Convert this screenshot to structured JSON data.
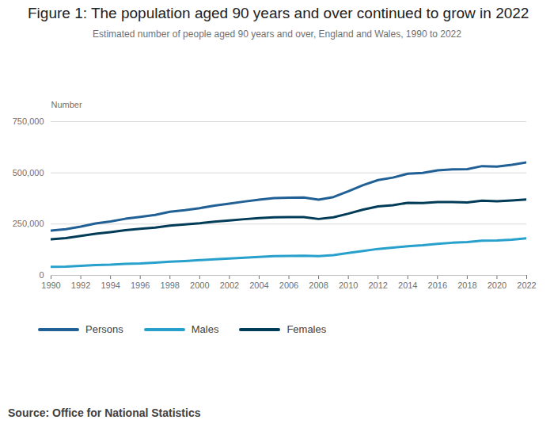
{
  "chart_data": {
    "type": "line",
    "title": "Figure 1: The population aged 90 years and over continued to grow in 2022",
    "subtitle": "Estimated number of people aged 90 years and over, England and Wales, 1990 to 2022",
    "y_label": "Number",
    "source": "Source: Office for National Statistics",
    "x": [
      1990,
      1991,
      1992,
      1993,
      1994,
      1995,
      1996,
      1997,
      1998,
      1999,
      2000,
      2001,
      2002,
      2003,
      2004,
      2005,
      2006,
      2007,
      2008,
      2009,
      2010,
      2011,
      2012,
      2013,
      2014,
      2015,
      2016,
      2017,
      2018,
      2019,
      2020,
      2021,
      2022
    ],
    "series": [
      {
        "name": "Persons",
        "color": "#206095",
        "values": [
          218000,
          225000,
          238000,
          253000,
          263000,
          276000,
          285000,
          295000,
          310000,
          318000,
          328000,
          340000,
          350000,
          360000,
          369000,
          377000,
          379000,
          380000,
          369000,
          382000,
          410000,
          440000,
          465000,
          477000,
          496000,
          500000,
          512000,
          517000,
          518000,
          533000,
          531000,
          539000,
          551000
        ]
      },
      {
        "name": "Males",
        "color": "#27a0cc",
        "values": [
          42000,
          43000,
          46000,
          50000,
          52000,
          56000,
          58000,
          62000,
          67000,
          70000,
          74000,
          78000,
          82000,
          86000,
          90000,
          94000,
          95000,
          96000,
          94000,
          99000,
          109000,
          119000,
          129000,
          135000,
          142000,
          147000,
          154000,
          159000,
          162000,
          169000,
          170000,
          174000,
          181000
        ]
      },
      {
        "name": "Females",
        "color": "#003c57",
        "values": [
          176000,
          182000,
          192000,
          203000,
          211000,
          220000,
          227000,
          233000,
          243000,
          248000,
          254000,
          262000,
          268000,
          274000,
          279000,
          283000,
          284000,
          284000,
          275000,
          283000,
          301000,
          321000,
          336000,
          342000,
          354000,
          353000,
          358000,
          358000,
          356000,
          364000,
          361000,
          365000,
          370000
        ]
      }
    ],
    "xlim": [
      1990,
      2022
    ],
    "xticks": [
      1990,
      1992,
      1994,
      1996,
      1998,
      2000,
      2002,
      2004,
      2006,
      2008,
      2010,
      2012,
      2014,
      2016,
      2018,
      2020,
      2022
    ],
    "ylim": [
      0,
      750000
    ],
    "yticks": [
      0,
      {
        "value": 250000,
        "label": "250,000"
      },
      {
        "value": 500000,
        "label": "500,000"
      },
      {
        "value": 750000,
        "label": "750,000"
      }
    ],
    "grid": true,
    "legend": "bottom"
  }
}
